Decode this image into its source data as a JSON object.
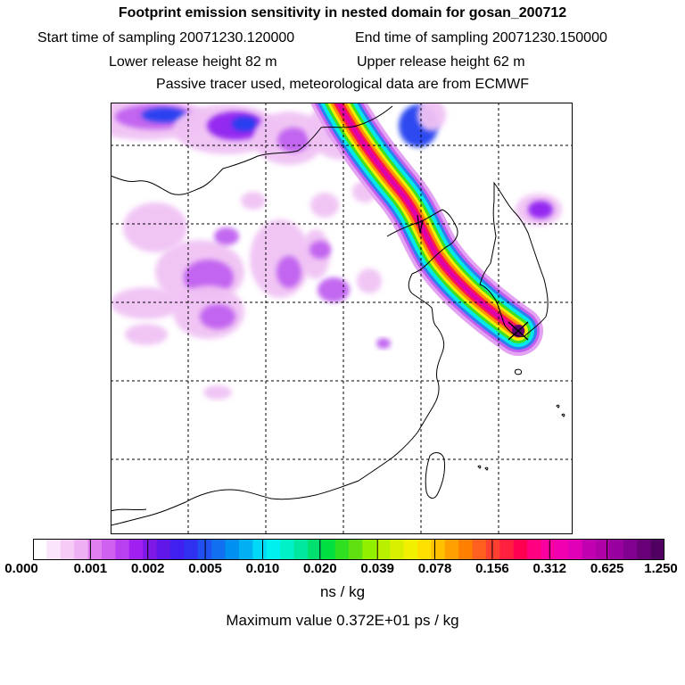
{
  "header": {
    "title": "Footprint emission sensitivity in nested domain for gosan_200712",
    "start_time": "Start time of sampling 20071230.120000",
    "end_time": "End time of sampling 20071230.150000",
    "lower_release": "Lower release height   82 m",
    "upper_release": "Upper release height   62 m",
    "passive_note": "Passive tracer used, meteorological data are from ECMWF"
  },
  "colorbar": {
    "tick_labels": [
      "0.000",
      "0.001",
      "0.002",
      "0.005",
      "0.010",
      "0.020",
      "0.039",
      "0.078",
      "0.156",
      "0.312",
      "0.625",
      "1.250"
    ],
    "colors": [
      "#ffffff",
      "#fbe5fb",
      "#f6ccf6",
      "#eeb0f2",
      "#e080f0",
      "#d060f0",
      "#b840f0",
      "#a020f0",
      "#8018e8",
      "#6018e8",
      "#4020f0",
      "#3030f0",
      "#2050f0",
      "#1070f0",
      "#0090f0",
      "#00b0f0",
      "#00d8f8",
      "#00f0f0",
      "#00f0c8",
      "#00e8a0",
      "#00e070",
      "#00e040",
      "#30e020",
      "#60e010",
      "#90f000",
      "#b8f000",
      "#d8f000",
      "#f0f000",
      "#ffe000",
      "#ffc000",
      "#ffa000",
      "#ff8000",
      "#ff6020",
      "#ff4030",
      "#ff2040",
      "#ff0050",
      "#ff0080",
      "#f800a0",
      "#f000b0",
      "#e000b8",
      "#c000b0",
      "#b000a8",
      "#9800a0",
      "#800090",
      "#680078",
      "#500060"
    ],
    "units": "ns / kg"
  },
  "max_value": "Maximum value  0.372E+01 ps / kg",
  "map": {
    "receptor_marker": "receptor-x-marker",
    "colors": {
      "plume_outer": "#e3a2f2",
      "plume_blue": "#2e7ef0",
      "plume_cyan": "#00e8e8",
      "plume_green": "#40e020",
      "plume_yellow": "#f0f000",
      "plume_orange": "#ff9000",
      "plume_red": "#ff1850",
      "plume_magenta": "#e000a8",
      "core": "#600070",
      "patch_light": "#f0c2f4",
      "patch_violet": "#c060f0",
      "patch_purple": "#9020f0",
      "patch_blue": "#2040f0"
    }
  }
}
